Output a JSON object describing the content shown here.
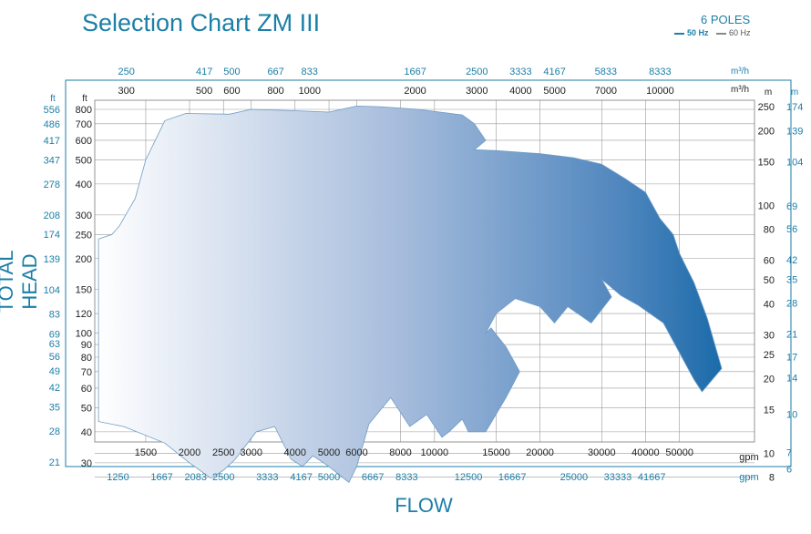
{
  "title": "Selection Chart ZM III",
  "poles": "6 POLES",
  "legend": {
    "hz50": "50 Hz",
    "hz60": "60 Hz"
  },
  "colors": {
    "accent": "#1b7fa8",
    "fill_start": "#ffffff",
    "fill_end": "#0a62a3",
    "grid": "#9a9a9a"
  },
  "chart_data": {
    "type": "area",
    "title": "Selection Chart ZM III",
    "xlabel": "FLOW",
    "ylabel": "TOTAL HEAD",
    "scale": "log-log",
    "grid": true,
    "axes": {
      "bottom_primary": {
        "unit": "gpm",
        "ticks": [
          1500,
          2000,
          2500,
          3000,
          4000,
          5000,
          6000,
          8000,
          10000,
          15000,
          20000,
          30000,
          40000,
          50000
        ]
      },
      "bottom_secondary": {
        "unit": "gpm",
        "ticks": [
          1250,
          1667,
          2083,
          2500,
          3333,
          4167,
          5000,
          6667,
          8333,
          12500,
          16667,
          25000,
          33333,
          41667
        ]
      },
      "top_inner": {
        "unit": "m³/h",
        "ticks": [
          300,
          500,
          600,
          800,
          1000,
          2000,
          3000,
          4000,
          5000,
          7000,
          10000
        ]
      },
      "top_outer": {
        "unit": "m³/h",
        "ticks": [
          250,
          417,
          500,
          667,
          833,
          1667,
          2500,
          3333,
          4167,
          5833,
          8333
        ]
      },
      "left_inner": {
        "unit": "ft",
        "ticks": [
          800,
          700,
          600,
          500,
          400,
          300,
          250,
          200,
          150,
          120,
          100,
          90,
          80,
          70,
          60,
          50,
          40,
          30
        ]
      },
      "left_outer": {
        "unit": "ft",
        "ticks": [
          556,
          486,
          417,
          347,
          278,
          208,
          174,
          139,
          104,
          83,
          69,
          63,
          56,
          49,
          42,
          35,
          28,
          21
        ]
      },
      "right_inner": {
        "unit": "m",
        "ticks": [
          250,
          200,
          150,
          100,
          80,
          60,
          50,
          40,
          30,
          25,
          20,
          15,
          10,
          8
        ]
      },
      "right_outer": {
        "unit": "m",
        "ticks": [
          174,
          139,
          104,
          69,
          56,
          42,
          35,
          28,
          21,
          17,
          14,
          10,
          7,
          6
        ]
      }
    },
    "series": [
      {
        "name": "50 Hz",
        "points": [
          [
            1100,
            240
          ],
          [
            1200,
            250
          ],
          [
            1260,
            270
          ],
          [
            1400,
            350
          ],
          [
            1500,
            500
          ],
          [
            1700,
            720
          ],
          [
            1950,
            770
          ],
          [
            2600,
            765
          ],
          [
            3000,
            800
          ],
          [
            4000,
            790
          ],
          [
            5000,
            780
          ],
          [
            6000,
            825
          ],
          [
            7000,
            820
          ],
          [
            9000,
            800
          ],
          [
            12000,
            760
          ],
          [
            13000,
            700
          ],
          [
            14000,
            600
          ],
          [
            13000,
            550
          ],
          [
            15000,
            545
          ],
          [
            20000,
            530
          ],
          [
            25000,
            510
          ],
          [
            30000,
            480
          ],
          [
            35000,
            420
          ],
          [
            40000,
            370
          ],
          [
            44000,
            290
          ],
          [
            48000,
            250
          ],
          [
            50000,
            210
          ],
          [
            55000,
            160
          ],
          [
            60000,
            115
          ],
          [
            66000,
            72
          ],
          [
            58000,
            58
          ],
          [
            55000,
            65
          ],
          [
            45000,
            110
          ],
          [
            38000,
            130
          ],
          [
            34000,
            142
          ],
          [
            30000,
            165
          ],
          [
            32000,
            140
          ],
          [
            28000,
            110
          ],
          [
            24000,
            128
          ],
          [
            22000,
            110
          ],
          [
            20000,
            128
          ],
          [
            17000,
            138
          ],
          [
            15000,
            120
          ],
          [
            14000,
            100
          ],
          [
            14500,
            105
          ],
          [
            16000,
            88
          ],
          [
            17500,
            70
          ],
          [
            16000,
            55
          ],
          [
            14000,
            40
          ],
          [
            12500,
            40
          ],
          [
            12000,
            45
          ],
          [
            11000,
            40
          ],
          [
            10500,
            38
          ],
          [
            9500,
            47
          ],
          [
            8500,
            42
          ],
          [
            7500,
            55
          ],
          [
            6500,
            43
          ],
          [
            6000,
            29
          ],
          [
            5700,
            25
          ],
          [
            5000,
            29
          ],
          [
            4500,
            32
          ],
          [
            4200,
            29
          ],
          [
            3900,
            31
          ],
          [
            3500,
            42
          ],
          [
            3100,
            40
          ],
          [
            2700,
            31
          ],
          [
            2500,
            28
          ],
          [
            2300,
            26
          ],
          [
            2000,
            30
          ],
          [
            1700,
            36
          ],
          [
            1300,
            42
          ],
          [
            1100,
            44
          ]
        ]
      }
    ]
  }
}
